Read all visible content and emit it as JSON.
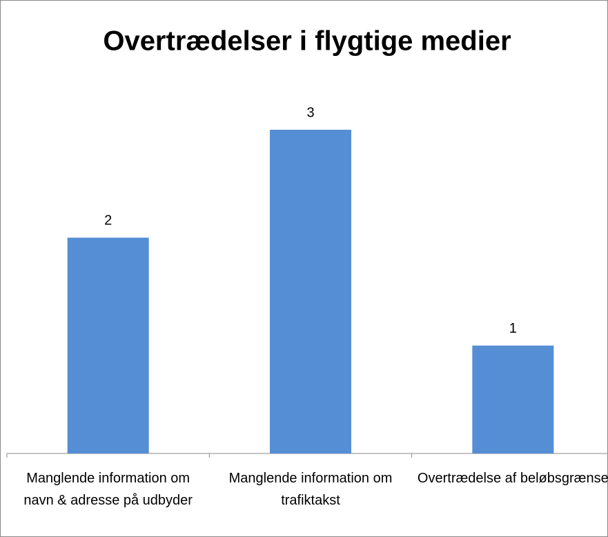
{
  "chart_data": {
    "type": "bar",
    "title": "Overtrædelser i flygtige medier",
    "categories": [
      "Manglende information om navn & adresse på udbyder",
      "Manglende information om trafiktakst",
      "Overtrædelse af beløbsgrænse"
    ],
    "values": [
      2,
      3,
      1
    ],
    "color": "#558ed5"
  }
}
